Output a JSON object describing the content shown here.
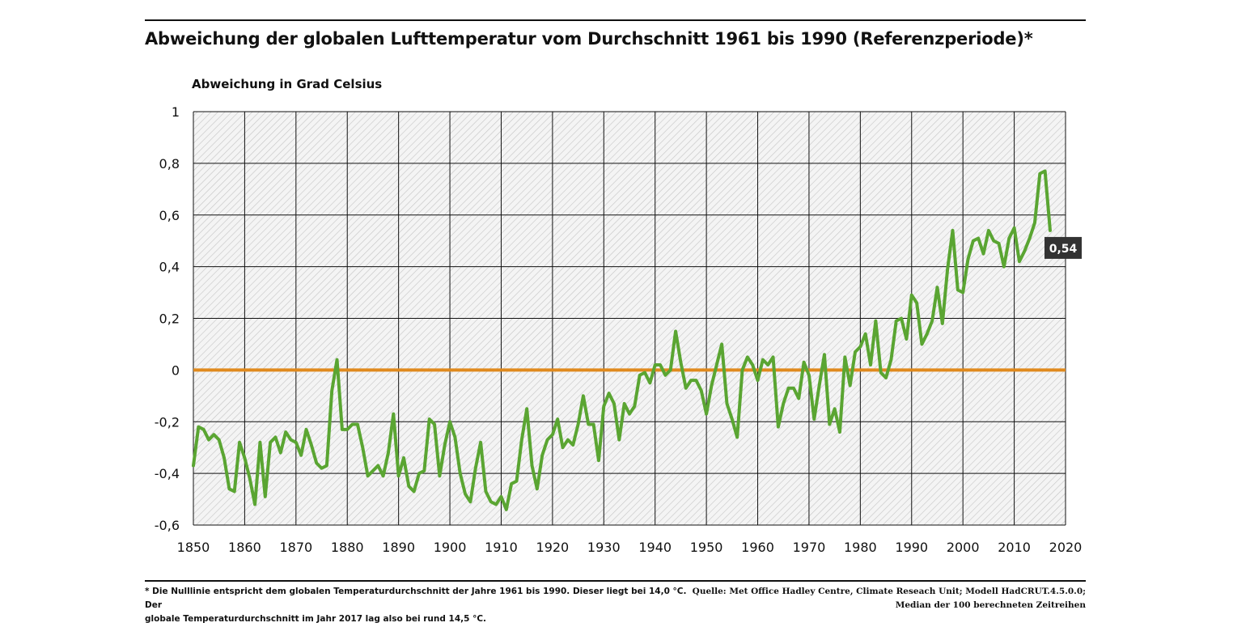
{
  "title": "Abweichung der globalen Lufttemperatur vom Durchschnitt 1961 bis 1990 (Referenzperiode)*",
  "footnote": {
    "line1": "* Die Nulllinie entspricht dem globalen Temperaturdurchschnitt der Jahre 1961 bis 1990. Dieser liegt bei 14,0 °C. Der",
    "line2": "globale Temperaturdurchschnitt im Jahr 2017 lag also bei rund 14,5 °C."
  },
  "source": {
    "line1": "Quelle: Met Office Hadley Centre, Climate Reseach Unit; Modell HadCRUT.4.5.0.0;",
    "line2": "Median der 100 berechneten Zeitreihen"
  },
  "colors": {
    "series": "#5aa532",
    "zero_line": "#e08a1e",
    "grid": "#111111",
    "label_bg": "#333333"
  },
  "chart_data": {
    "type": "line",
    "title": "Abweichung der globalen Lufttemperatur vom Durchschnitt 1961 bis 1990 (Referenzperiode)*",
    "ylabel": "Abweichung in Grad Celsius",
    "xlabel": "",
    "xlim": [
      1850,
      2020
    ],
    "ylim": [
      -0.6,
      1
    ],
    "x_ticks": [
      1850,
      1860,
      1870,
      1880,
      1890,
      1900,
      1910,
      1920,
      1930,
      1940,
      1950,
      1960,
      1970,
      1980,
      1990,
      2000,
      2010,
      2020
    ],
    "y_ticks": [
      1,
      0.8,
      0.6,
      0.4,
      0.2,
      0,
      -0.2,
      -0.4,
      -0.6
    ],
    "y_tick_labels": [
      "1",
      "0,8",
      "0,6",
      "0,4",
      "0,2",
      "0",
      "-0,2",
      "-0,4",
      "-0,6"
    ],
    "grid": true,
    "reference_line": {
      "y": 0
    },
    "last_value_label": "0,54",
    "series": [
      {
        "name": "Abweichung",
        "x_start": 1850,
        "values": [
          -0.37,
          -0.22,
          -0.23,
          -0.27,
          -0.25,
          -0.27,
          -0.34,
          -0.46,
          -0.47,
          -0.28,
          -0.34,
          -0.42,
          -0.52,
          -0.28,
          -0.49,
          -0.28,
          -0.26,
          -0.32,
          -0.24,
          -0.27,
          -0.28,
          -0.33,
          -0.23,
          -0.29,
          -0.36,
          -0.38,
          -0.37,
          -0.08,
          0.04,
          -0.23,
          -0.23,
          -0.21,
          -0.21,
          -0.3,
          -0.41,
          -0.39,
          -0.37,
          -0.41,
          -0.32,
          -0.17,
          -0.41,
          -0.34,
          -0.45,
          -0.47,
          -0.4,
          -0.39,
          -0.19,
          -0.21,
          -0.41,
          -0.29,
          -0.2,
          -0.26,
          -0.4,
          -0.48,
          -0.51,
          -0.38,
          -0.28,
          -0.47,
          -0.51,
          -0.52,
          -0.49,
          -0.54,
          -0.44,
          -0.43,
          -0.27,
          -0.15,
          -0.37,
          -0.46,
          -0.33,
          -0.27,
          -0.25,
          -0.19,
          -0.3,
          -0.27,
          -0.29,
          -0.21,
          -0.1,
          -0.21,
          -0.21,
          -0.35,
          -0.14,
          -0.09,
          -0.13,
          -0.27,
          -0.13,
          -0.17,
          -0.14,
          -0.02,
          -0.01,
          -0.05,
          0.02,
          0.02,
          -0.02,
          0.0,
          0.15,
          0.03,
          -0.07,
          -0.04,
          -0.04,
          -0.08,
          -0.17,
          -0.06,
          0.02,
          0.1,
          -0.13,
          -0.19,
          -0.26,
          0.0,
          0.05,
          0.02,
          -0.04,
          0.04,
          0.02,
          0.05,
          -0.22,
          -0.13,
          -0.07,
          -0.07,
          -0.11,
          0.03,
          -0.02,
          -0.19,
          -0.06,
          0.06,
          -0.21,
          -0.15,
          -0.24,
          0.05,
          -0.06,
          0.07,
          0.09,
          0.14,
          0.02,
          0.19,
          -0.01,
          -0.03,
          0.04,
          0.19,
          0.2,
          0.12,
          0.29,
          0.26,
          0.1,
          0.14,
          0.19,
          0.32,
          0.18,
          0.39,
          0.54,
          0.31,
          0.3,
          0.43,
          0.5,
          0.51,
          0.45,
          0.54,
          0.5,
          0.49,
          0.4,
          0.51,
          0.55,
          0.42,
          0.46,
          0.51,
          0.57,
          0.76,
          0.77,
          0.54
        ]
      }
    ]
  }
}
